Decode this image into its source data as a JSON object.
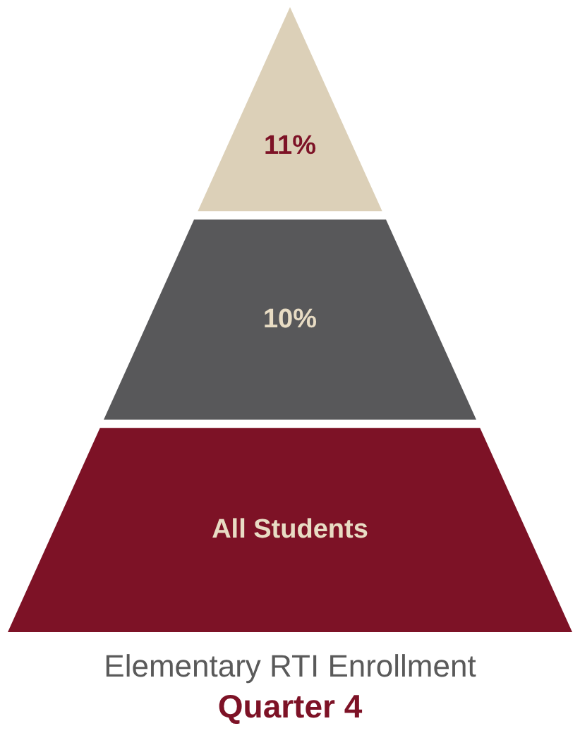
{
  "chart_data": {
    "type": "other",
    "title": "Elementary RTI Enrollment",
    "subtitle": "Quarter 4",
    "categories": [
      null,
      null,
      "All Students"
    ],
    "values": [
      11,
      10,
      null
    ],
    "value_labels": [
      "11%",
      "10%",
      null
    ],
    "colors": [
      "#dcd0b8",
      "#58585a",
      "#7d1226"
    ]
  }
}
